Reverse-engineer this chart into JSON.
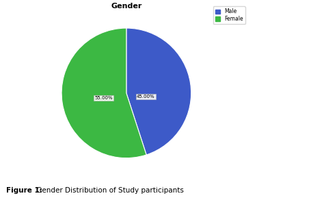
{
  "title": "Gender",
  "slices": [
    45.0,
    55.0
  ],
  "labels": [
    "Male",
    "Female"
  ],
  "colors": [
    "#3d5ac8",
    "#3cb843"
  ],
  "legend_labels": [
    "Male",
    "Female"
  ],
  "startangle": 90,
  "counterclock": false,
  "label_texts": [
    "45.00%",
    "55.00%"
  ],
  "caption_bold": "Figure 1:",
  "caption_normal": " Gender Distribution of Study participants",
  "background_color": "#ffffff",
  "title_fontsize": 8,
  "legend_fontsize": 5.5,
  "label_fontsize": 5
}
